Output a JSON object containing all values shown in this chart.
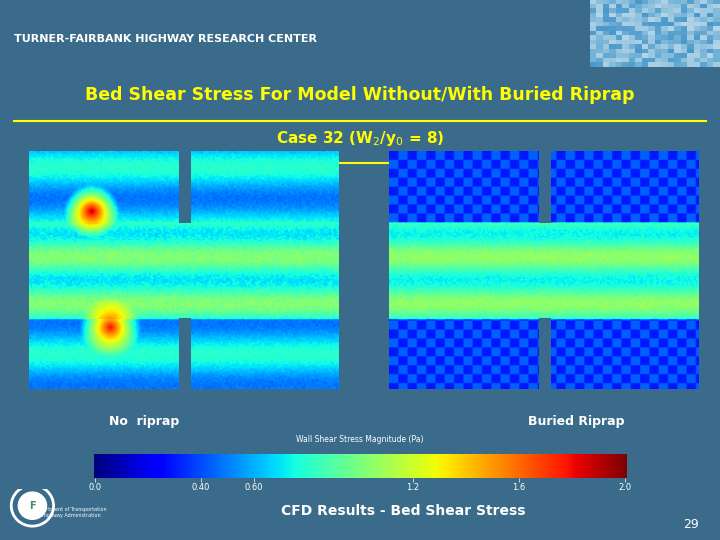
{
  "slide_bg": "#3a6b8a",
  "header_bg": "#2e6070",
  "header_text": "TURNER-FAIRBANK HIGHWAY RESEARCH CENTER",
  "header_text_color": "#ffffff",
  "title_line1": "Bed Shear Stress For Model Without/With Buried Riprap",
  "title_line2": "Case 32 (W$_2$/y$_0$ = 8)",
  "title_color": "#ffff00",
  "label_left": "No  riprap",
  "label_right": "Buried Riprap",
  "label_color": "#ffffff",
  "colorbar_label": "Wall Shear Stress Magnitude (Pa)",
  "colorbar_ticks": [
    0.0,
    0.4,
    0.6,
    1.2,
    1.6,
    2.0
  ],
  "colorbar_tick_labels": [
    "0.0",
    "0.40",
    "0.60",
    "1.2",
    "1.6",
    "2.0"
  ],
  "bottom_text": "CFD Results - Bed Shear Stress",
  "bottom_text_color": "#ffffff",
  "footer_bg": "#3d8c6b",
  "page_num": "29"
}
